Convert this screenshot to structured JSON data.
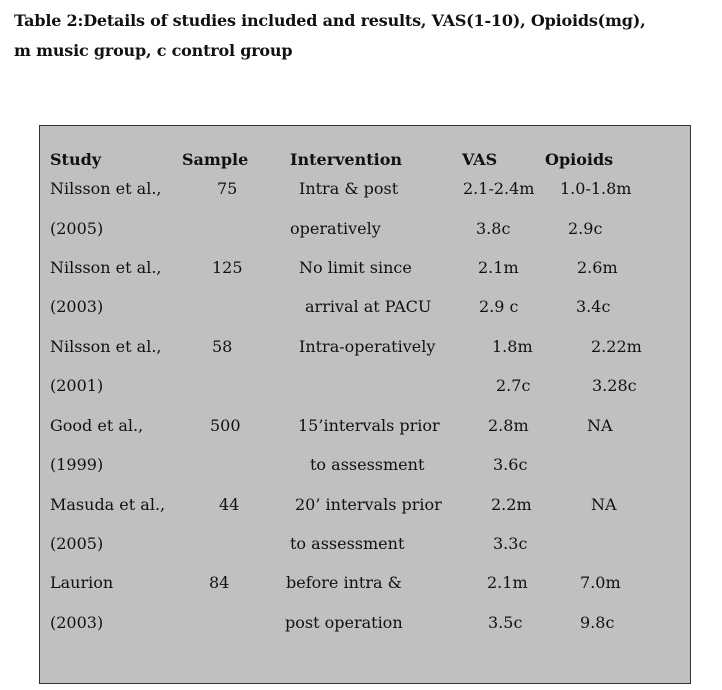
{
  "caption": {
    "line1": "Table 2:Details of studies included and results, VAS(1-10), Opioids(mg),",
    "line2": "m music group, c control group"
  },
  "table": {
    "headers": {
      "study": "Study",
      "sample": "Sample",
      "intervention": "Intervention",
      "vas": "VAS",
      "opioids": "Opioids"
    },
    "rows": [
      {
        "study": "Nilsson et al.,",
        "sample": "75",
        "intervention": "Intra & post",
        "vas": "2.1-2.4m",
        "opioids": "1.0-1.8m"
      },
      {
        "study": "(2005)",
        "sample": "",
        "intervention": "operatively",
        "vas": "3.8c",
        "opioids": "2.9c"
      },
      {
        "study": "Nilsson et al.,",
        "sample": "125",
        "intervention": "No limit since",
        "vas": "2.1m",
        "opioids": "2.6m"
      },
      {
        "study": "(2003)",
        "sample": "",
        "intervention": "arrival at PACU",
        "vas": "2.9 c",
        "opioids": "3.4c"
      },
      {
        "study": "Nilsson et al.,",
        "sample": "58",
        "intervention": "Intra-operatively",
        "vas": "1.8m",
        "opioids": "2.22m"
      },
      {
        "study": "(2001)",
        "sample": "",
        "intervention": "",
        "vas": "2.7c",
        "opioids": "3.28c"
      },
      {
        "study": "Good et al.,",
        "sample": "500",
        "intervention": "15’intervals prior",
        "vas": "2.8m",
        "opioids": "NA"
      },
      {
        "study": "(1999)",
        "sample": "",
        "intervention": "to assessment",
        "vas": "3.6c",
        "opioids": ""
      },
      {
        "study": "Masuda et al.,",
        "sample": "44",
        "intervention": "20’ intervals prior",
        "vas": "2.2m",
        "opioids": "NA"
      },
      {
        "study": "(2005)",
        "sample": "",
        "intervention": "to assessment",
        "vas": "3.3c",
        "opioids": ""
      },
      {
        "study": "Laurion",
        "sample": "84",
        "intervention": "before intra &",
        "vas": "2.1m",
        "opioids": "7.0m"
      },
      {
        "study": "(2003)",
        "sample": "",
        "intervention": "post operation",
        "vas": "3.5c",
        "opioids": "9.8c"
      }
    ]
  },
  "colors": {
    "table_background": "#c0c0c0",
    "table_border": "#333333",
    "text": "#111111"
  }
}
